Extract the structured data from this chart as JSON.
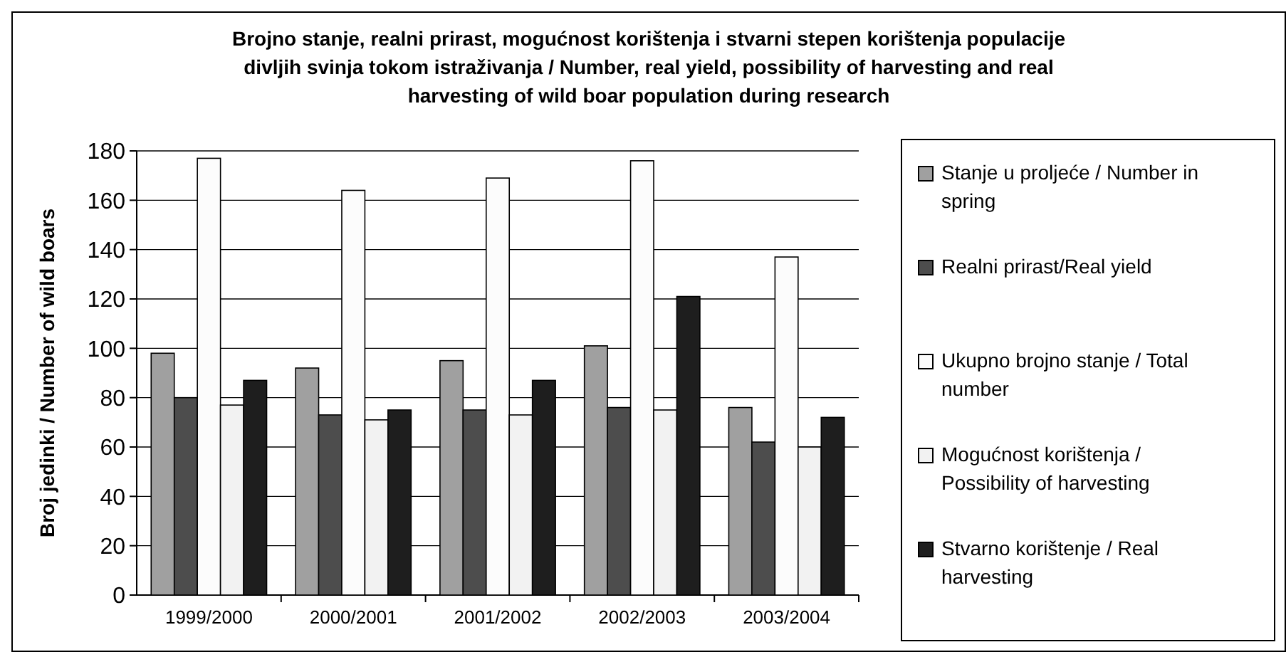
{
  "chart_data": {
    "type": "bar",
    "title": "Brojno stanje, realni prirast, mogućnost korištenja i stvarni stepen korištenja populacije divljih svinja tokom istraživanja / Number, real yield, possibility of harvesting and real harvesting of wild boar population during research",
    "ylabel": "Broj jedinki / Number of wild boars",
    "categories": [
      "1999/2000",
      "2000/2001",
      "2001/2002",
      "2002/2003",
      "2003/2004"
    ],
    "series": [
      {
        "name": "Stanje u proljeće / Number in spring",
        "color": "#a0a0a0",
        "values": [
          98,
          92,
          95,
          101,
          76
        ]
      },
      {
        "name": "Realni prirast/Real yield",
        "color": "#4d4d4d",
        "values": [
          80,
          73,
          75,
          76,
          62
        ]
      },
      {
        "name": "Ukupno brojno stanje / Total number",
        "color": "#fcfcfc",
        "values": [
          177,
          164,
          169,
          176,
          137
        ]
      },
      {
        "name": "Mogućnost korištenja / Possibility of harvesting",
        "color": "#f2f2f2",
        "values": [
          77,
          71,
          73,
          75,
          60
        ]
      },
      {
        "name": "Stvarno korištenje / Real harvesting",
        "color": "#1e1e1e",
        "values": [
          87,
          75,
          87,
          121,
          72
        ]
      }
    ],
    "ylim": [
      0,
      180
    ],
    "yticks": [
      0,
      20,
      40,
      60,
      80,
      100,
      120,
      140,
      160,
      180
    ],
    "grid": "y",
    "legend": "right"
  }
}
